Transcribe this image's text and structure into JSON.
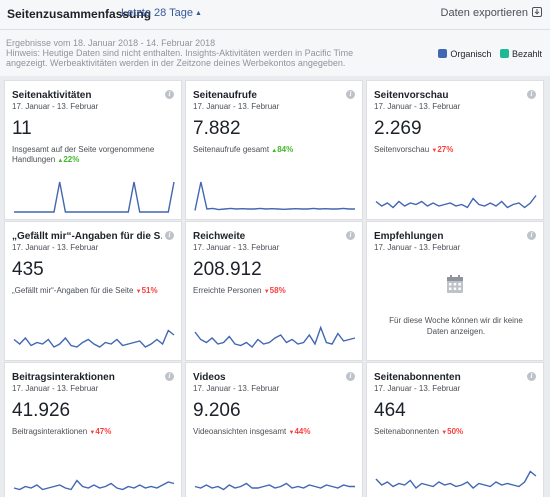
{
  "header": {
    "title": "Seitenzusammenfassung",
    "range_label": "Letzte 28 Tage",
    "export_label": "Daten exportieren"
  },
  "info": {
    "results_line": "Ergebnisse vom 18. Januar 2018 - 14. Februar 2018",
    "note": "Hinweis: Heutige Daten sind nicht enthalten. Insights-Aktivitäten werden in Pacific Time angezeigt. Werbeaktivitäten werden in der Zeitzone deines Werbekontos angegeben."
  },
  "legend": {
    "items": [
      {
        "label": "Organisch",
        "color": "#4267b2"
      },
      {
        "label": "Bezahlt",
        "color": "#1fb895"
      }
    ]
  },
  "cards": [
    {
      "title": "Seitenaktivitäten",
      "date": "17. Januar - 13. Februar",
      "value": "11",
      "sub": "Insgesamt auf der Seite vorgenommene Handlungen",
      "delta": "22%",
      "delta_dir": "up",
      "series": [
        0,
        0,
        0,
        0,
        0,
        0,
        0,
        0,
        1,
        0,
        0,
        0,
        0,
        0,
        0,
        0,
        0,
        0,
        0,
        0,
        0,
        1,
        0,
        0,
        0,
        0,
        0,
        0,
        1
      ]
    },
    {
      "title": "Seitenaufrufe",
      "date": "17. Januar - 13. Februar",
      "value": "7.882",
      "sub": "Seitenaufrufe gesamt",
      "delta": "84%",
      "delta_dir": "up",
      "series": [
        0.05,
        1,
        0.1,
        0.12,
        0.08,
        0.1,
        0.12,
        0.1,
        0.11,
        0.1,
        0.1,
        0.12,
        0.1,
        0.11,
        0.1,
        0.09,
        0.1,
        0.11,
        0.1,
        0.1,
        0.12,
        0.1,
        0.11,
        0.1,
        0.1,
        0.12,
        0.1,
        0.1
      ]
    },
    {
      "title": "Seitenvorschau",
      "date": "17. Januar - 13. Februar",
      "value": "2.269",
      "sub": "Seitenvorschau",
      "delta": "27%",
      "delta_dir": "down",
      "series": [
        0.35,
        0.2,
        0.3,
        0.15,
        0.35,
        0.2,
        0.3,
        0.25,
        0.35,
        0.2,
        0.3,
        0.2,
        0.25,
        0.3,
        0.2,
        0.25,
        0.15,
        0.45,
        0.25,
        0.2,
        0.3,
        0.2,
        0.35,
        0.15,
        0.25,
        0.3,
        0.15,
        0.3,
        0.55
      ]
    },
    {
      "title": "„Gefällt mir“-Angaben für die S…",
      "date": "17. Januar - 13. Februar",
      "value": "435",
      "sub": "„Gefällt mir“-Angaben für die Seite",
      "delta": "51%",
      "delta_dir": "down",
      "series": [
        0.45,
        0.3,
        0.5,
        0.25,
        0.35,
        0.3,
        0.45,
        0.2,
        0.3,
        0.5,
        0.25,
        0.2,
        0.35,
        0.45,
        0.3,
        0.2,
        0.35,
        0.3,
        0.45,
        0.25,
        0.3,
        0.35,
        0.4,
        0.2,
        0.3,
        0.45,
        0.3,
        0.75,
        0.6
      ]
    },
    {
      "title": "Reichweite",
      "date": "17. Januar - 13. Februar",
      "value": "208.912",
      "sub": "Erreichte Personen",
      "delta": "58%",
      "delta_dir": "down",
      "series": [
        0.7,
        0.45,
        0.35,
        0.5,
        0.3,
        0.35,
        0.55,
        0.3,
        0.25,
        0.35,
        0.2,
        0.45,
        0.3,
        0.35,
        0.5,
        0.6,
        0.35,
        0.45,
        0.3,
        0.35,
        0.6,
        0.3,
        0.85,
        0.35,
        0.3,
        0.65,
        0.4,
        0.45,
        0.5
      ]
    },
    {
      "title": "Empfehlungen",
      "date": "17. Januar - 13. Februar",
      "empty": true,
      "empty_text": "Für diese Woche können wir dir keine Daten anzeigen."
    },
    {
      "title": "Beitragsinteraktionen",
      "date": "17. Januar - 13. Februar",
      "value": "41.926",
      "sub": "Beitragsinteraktionen",
      "delta": "47%",
      "delta_dir": "down",
      "series": [
        0.2,
        0.15,
        0.25,
        0.2,
        0.3,
        0.15,
        0.2,
        0.25,
        0.3,
        0.2,
        0.15,
        0.45,
        0.25,
        0.2,
        0.3,
        0.2,
        0.25,
        0.35,
        0.2,
        0.15,
        0.25,
        0.2,
        0.3,
        0.2,
        0.25,
        0.2,
        0.3,
        0.4,
        0.35
      ]
    },
    {
      "title": "Videos",
      "date": "17. Januar - 13. Februar",
      "value": "9.206",
      "sub": "Videoansichten insgesamt",
      "delta": "44%",
      "delta_dir": "down",
      "series": [
        0.25,
        0.2,
        0.3,
        0.2,
        0.25,
        0.15,
        0.3,
        0.2,
        0.25,
        0.35,
        0.2,
        0.2,
        0.25,
        0.3,
        0.2,
        0.25,
        0.35,
        0.2,
        0.25,
        0.2,
        0.3,
        0.25,
        0.2,
        0.3,
        0.25,
        0.2,
        0.3,
        0.25,
        0.25
      ]
    },
    {
      "title": "Seitenabonnenten",
      "date": "17. Januar - 13. Februar",
      "value": "464",
      "sub": "Seitenabonnenten",
      "delta": "50%",
      "delta_dir": "down",
      "series": [
        0.5,
        0.3,
        0.4,
        0.25,
        0.35,
        0.3,
        0.45,
        0.2,
        0.35,
        0.3,
        0.25,
        0.4,
        0.3,
        0.35,
        0.25,
        0.3,
        0.4,
        0.2,
        0.35,
        0.3,
        0.25,
        0.4,
        0.3,
        0.35,
        0.3,
        0.25,
        0.4,
        0.75,
        0.6
      ]
    }
  ]
}
